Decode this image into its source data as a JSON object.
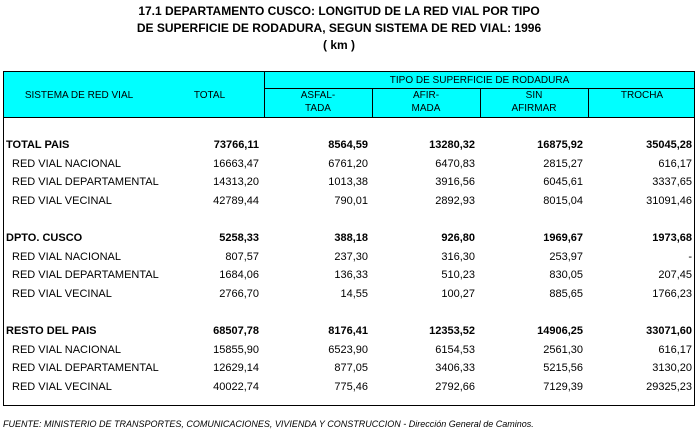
{
  "title": [
    "17.1 DEPARTAMENTO CUSCO: LONGITUD DE LA RED VIAL POR TIPO",
    "DE SUPERFICIE DE RODADURA, SEGUN SISTEMA DE RED VIAL: 1996",
    "( km )"
  ],
  "table": {
    "header": {
      "system": "SISTEMA DE RED VIAL",
      "total": "TOTAL",
      "group": "TIPO DE SUPERFICIE DE RODADURA",
      "sub": [
        [
          "ASFAL-",
          "TADA"
        ],
        [
          "AFIR-",
          "MADA"
        ],
        [
          "SIN",
          "AFIRMAR"
        ],
        [
          "TROCHA"
        ]
      ]
    },
    "groups": [
      {
        "name": "TOTAL PAIS",
        "values": [
          "73766,11",
          "8564,59",
          "13280,32",
          "16875,92",
          "35045,28"
        ],
        "rows": [
          {
            "name": "RED VIAL NACIONAL",
            "values": [
              "16663,47",
              "6761,20",
              "6470,83",
              "2815,27",
              "616,17"
            ]
          },
          {
            "name": "RED VIAL DEPARTAMENTAL",
            "values": [
              "14313,20",
              "1013,38",
              "3916,56",
              "6045,61",
              "3337,65"
            ]
          },
          {
            "name": "RED VIAL VECINAL",
            "values": [
              "42789,44",
              "790,01",
              "2892,93",
              "8015,04",
              "31091,46"
            ]
          }
        ]
      },
      {
        "name": "DPTO. CUSCO",
        "values": [
          "5258,33",
          "388,18",
          "926,80",
          "1969,67",
          "1973,68"
        ],
        "rows": [
          {
            "name": "RED VIAL NACIONAL",
            "values": [
              "807,57",
              "237,30",
              "316,30",
              "253,97",
              "-"
            ]
          },
          {
            "name": "RED VIAL DEPARTAMENTAL",
            "values": [
              "1684,06",
              "136,33",
              "510,23",
              "830,05",
              "207,45"
            ]
          },
          {
            "name": "RED VIAL VECINAL",
            "values": [
              "2766,70",
              "14,55",
              "100,27",
              "885,65",
              "1766,23"
            ]
          }
        ]
      },
      {
        "name": "RESTO DEL PAIS",
        "values": [
          "68507,78",
          "8176,41",
          "12353,52",
          "14906,25",
          "33071,60"
        ],
        "rows": [
          {
            "name": "RED VIAL NACIONAL",
            "values": [
              "15855,90",
              "6523,90",
              "6154,53",
              "2561,30",
              "616,17"
            ]
          },
          {
            "name": "RED VIAL DEPARTAMENTAL",
            "values": [
              "12629,14",
              "877,05",
              "3406,33",
              "5215,56",
              "3130,20"
            ]
          },
          {
            "name": "RED VIAL VECINAL",
            "values": [
              "40022,74",
              "775,46",
              "2792,66",
              "7129,39",
              "29325,23"
            ]
          }
        ]
      }
    ]
  },
  "footer": "FUENTE: MINISTERIO DE TRANSPORTES, COMUNICACIONES, VIVIENDA Y CONSTRUCCION - Dirección General de Caminos."
}
